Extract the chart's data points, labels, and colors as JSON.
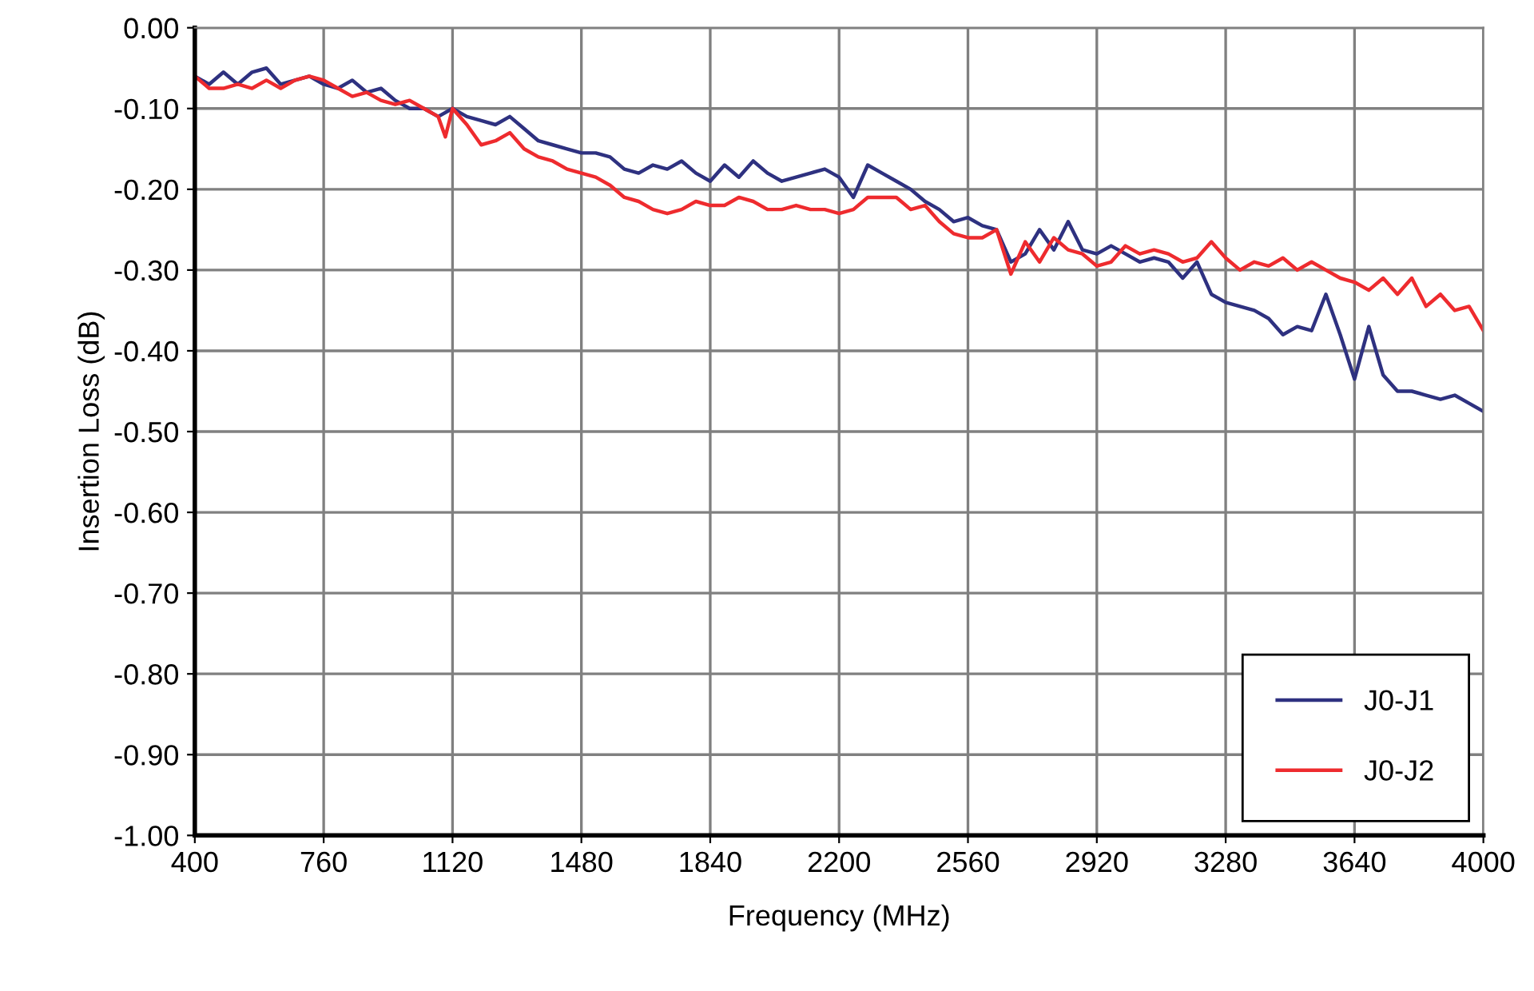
{
  "chart_data": {
    "type": "line",
    "xlabel": "Frequency (MHz)",
    "ylabel": "Insertion Loss (dB)",
    "xlim": [
      400,
      4000
    ],
    "xticks": [
      400,
      760,
      1120,
      1480,
      1840,
      2200,
      2560,
      2920,
      3280,
      3640,
      4000
    ],
    "ylim": [
      -1.0,
      0.0
    ],
    "yticks": [
      {
        "value": -1.0,
        "label": "-1.00"
      },
      {
        "value": -0.9,
        "label": "-0.90"
      },
      {
        "value": -0.8,
        "label": "-0.80"
      },
      {
        "value": -0.7,
        "label": "-0.70"
      },
      {
        "value": -0.6,
        "label": "-0.60"
      },
      {
        "value": -0.5,
        "label": "-0.50"
      },
      {
        "value": -0.4,
        "label": "-0.40"
      },
      {
        "value": -0.3,
        "label": "-0.30"
      },
      {
        "value": -0.2,
        "label": "-0.20"
      },
      {
        "value": -0.1,
        "label": "-0.10"
      },
      {
        "value": 0.0,
        "label": "0.00"
      }
    ],
    "grid": true,
    "legend": "bottom right",
    "marker": "none",
    "line_style": "solid",
    "series": [
      {
        "name": "J0-J1",
        "color": "#2e3180",
        "x": [
          400,
          440,
          480,
          520,
          560,
          600,
          640,
          680,
          720,
          760,
          800,
          840,
          880,
          920,
          960,
          1000,
          1040,
          1080,
          1120,
          1160,
          1200,
          1240,
          1280,
          1320,
          1360,
          1400,
          1440,
          1480,
          1520,
          1560,
          1600,
          1640,
          1680,
          1720,
          1760,
          1800,
          1840,
          1880,
          1920,
          1960,
          2000,
          2040,
          2080,
          2120,
          2160,
          2200,
          2240,
          2280,
          2320,
          2360,
          2400,
          2440,
          2480,
          2520,
          2560,
          2600,
          2640,
          2680,
          2720,
          2760,
          2800,
          2840,
          2880,
          2920,
          2960,
          3000,
          3040,
          3080,
          3120,
          3160,
          3200,
          3240,
          3280,
          3320,
          3360,
          3400,
          3440,
          3480,
          3520,
          3560,
          3600,
          3640,
          3680,
          3720,
          3760,
          3800,
          3840,
          3880,
          3920,
          3960,
          4000
        ],
        "values": [
          -0.06,
          -0.07,
          -0.055,
          -0.07,
          -0.055,
          -0.05,
          -0.07,
          -0.065,
          -0.06,
          -0.07,
          -0.075,
          -0.065,
          -0.08,
          -0.075,
          -0.09,
          -0.1,
          -0.1,
          -0.11,
          -0.1,
          -0.11,
          -0.115,
          -0.12,
          -0.11,
          -0.125,
          -0.14,
          -0.145,
          -0.15,
          -0.155,
          -0.155,
          -0.16,
          -0.175,
          -0.18,
          -0.17,
          -0.175,
          -0.165,
          -0.18,
          -0.19,
          -0.17,
          -0.185,
          -0.165,
          -0.18,
          -0.19,
          -0.185,
          -0.18,
          -0.175,
          -0.185,
          -0.21,
          -0.17,
          -0.18,
          -0.19,
          -0.2,
          -0.215,
          -0.225,
          -0.24,
          -0.235,
          -0.245,
          -0.25,
          -0.29,
          -0.28,
          -0.25,
          -0.275,
          -0.24,
          -0.275,
          -0.28,
          -0.27,
          -0.28,
          -0.29,
          -0.285,
          -0.29,
          -0.31,
          -0.29,
          -0.33,
          -0.34,
          -0.345,
          -0.35,
          -0.36,
          -0.38,
          -0.37,
          -0.375,
          -0.33,
          -0.38,
          -0.435,
          -0.37,
          -0.43,
          -0.45,
          -0.45,
          -0.455,
          -0.46,
          -0.455,
          -0.465,
          -0.475
        ]
      },
      {
        "name": "J0-J2",
        "color": "#ee2b2e",
        "x": [
          400,
          440,
          480,
          520,
          560,
          600,
          640,
          680,
          720,
          760,
          800,
          840,
          880,
          920,
          960,
          1000,
          1040,
          1080,
          1100,
          1120,
          1160,
          1200,
          1240,
          1280,
          1320,
          1360,
          1400,
          1440,
          1480,
          1520,
          1560,
          1600,
          1640,
          1680,
          1720,
          1760,
          1800,
          1840,
          1880,
          1920,
          1960,
          2000,
          2040,
          2080,
          2120,
          2160,
          2200,
          2240,
          2280,
          2320,
          2360,
          2400,
          2440,
          2480,
          2520,
          2560,
          2600,
          2640,
          2680,
          2720,
          2760,
          2800,
          2840,
          2880,
          2920,
          2960,
          3000,
          3040,
          3080,
          3120,
          3160,
          3200,
          3240,
          3280,
          3320,
          3360,
          3400,
          3440,
          3480,
          3520,
          3560,
          3600,
          3640,
          3680,
          3720,
          3760,
          3800,
          3840,
          3880,
          3920,
          3960,
          4000
        ],
        "values": [
          -0.06,
          -0.075,
          -0.075,
          -0.07,
          -0.075,
          -0.065,
          -0.075,
          -0.065,
          -0.06,
          -0.065,
          -0.075,
          -0.085,
          -0.08,
          -0.09,
          -0.095,
          -0.09,
          -0.1,
          -0.11,
          -0.135,
          -0.1,
          -0.12,
          -0.145,
          -0.14,
          -0.13,
          -0.15,
          -0.16,
          -0.165,
          -0.175,
          -0.18,
          -0.185,
          -0.195,
          -0.21,
          -0.215,
          -0.225,
          -0.23,
          -0.225,
          -0.215,
          -0.22,
          -0.22,
          -0.21,
          -0.215,
          -0.225,
          -0.225,
          -0.22,
          -0.225,
          -0.225,
          -0.23,
          -0.225,
          -0.21,
          -0.21,
          -0.21,
          -0.225,
          -0.22,
          -0.24,
          -0.255,
          -0.26,
          -0.26,
          -0.25,
          -0.305,
          -0.265,
          -0.29,
          -0.26,
          -0.275,
          -0.28,
          -0.295,
          -0.29,
          -0.27,
          -0.28,
          -0.275,
          -0.28,
          -0.29,
          -0.285,
          -0.265,
          -0.285,
          -0.3,
          -0.29,
          -0.295,
          -0.285,
          -0.3,
          -0.29,
          -0.3,
          -0.31,
          -0.315,
          -0.325,
          -0.31,
          -0.33,
          -0.31,
          -0.345,
          -0.33,
          -0.35,
          -0.345,
          -0.375
        ]
      }
    ]
  }
}
